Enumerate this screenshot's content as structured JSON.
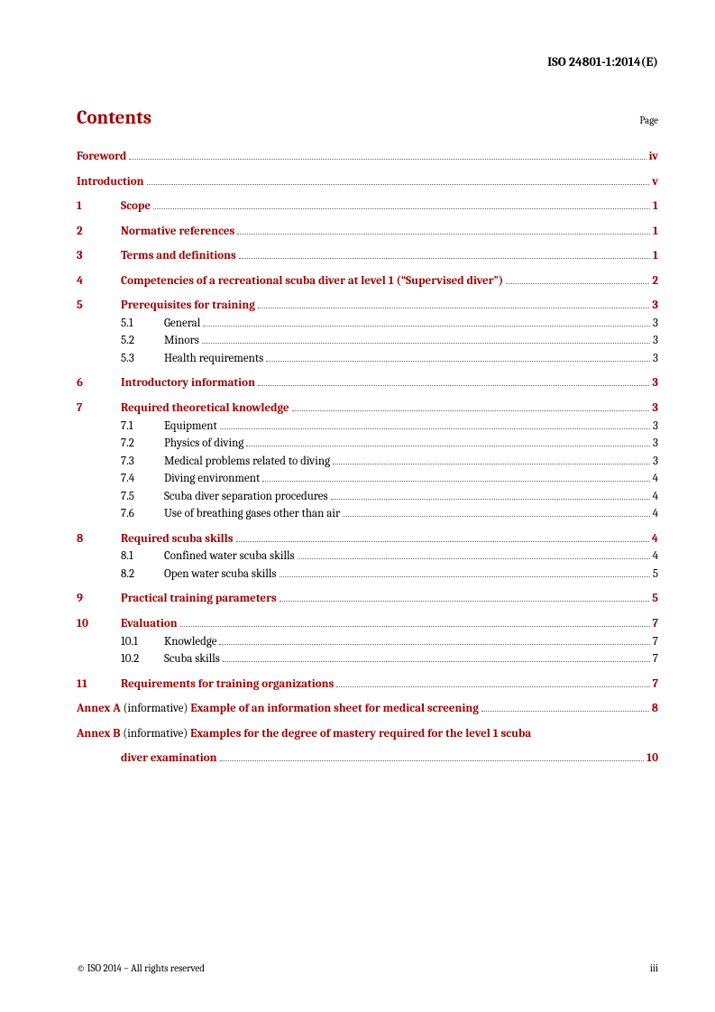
{
  "header": "ISO 24801-1:2014(E)",
  "title": "Contents",
  "page_label": "Page",
  "front": [
    {
      "label": "Foreword",
      "page": "iv"
    },
    {
      "label": "Introduction",
      "page": "v"
    }
  ],
  "sections": [
    {
      "num": "1",
      "label": "Scope",
      "page": "1"
    },
    {
      "num": "2",
      "label": "Normative references",
      "page": "1"
    },
    {
      "num": "3",
      "label": "Terms and definitions",
      "page": "1"
    },
    {
      "num": "4",
      "label": "Competencies of a recreational scuba diver at level 1 (“Supervised diver”)",
      "page": "2"
    },
    {
      "num": "5",
      "label": "Prerequisites for training",
      "page": "3",
      "subs": [
        {
          "num": "5.1",
          "label": "General",
          "page": "3"
        },
        {
          "num": "5.2",
          "label": "Minors",
          "page": "3"
        },
        {
          "num": "5.3",
          "label": "Health requirements",
          "page": "3"
        }
      ]
    },
    {
      "num": "6",
      "label": "Introductory information",
      "page": "3"
    },
    {
      "num": "7",
      "label": "Required theoretical knowledge",
      "page": "3",
      "subs": [
        {
          "num": "7.1",
          "label": "Equipment",
          "page": "3"
        },
        {
          "num": "7.2",
          "label": "Physics of diving",
          "page": "3"
        },
        {
          "num": "7.3",
          "label": "Medical problems related to diving",
          "page": "3"
        },
        {
          "num": "7.4",
          "label": "Diving environment",
          "page": "4"
        },
        {
          "num": "7.5",
          "label": "Scuba diver separation procedures",
          "page": "4"
        },
        {
          "num": "7.6",
          "label": "Use of breathing gases other than air",
          "page": "4"
        }
      ]
    },
    {
      "num": "8",
      "label": "Required scuba skills",
      "page": "4",
      "subs": [
        {
          "num": "8.1",
          "label": "Confined water scuba skills",
          "page": "4"
        },
        {
          "num": "8.2",
          "label": "Open water scuba skills",
          "page": "5"
        }
      ]
    },
    {
      "num": "9",
      "label": "Practical training parameters",
      "page": "5"
    },
    {
      "num": "10",
      "label": "Evaluation",
      "page": "7",
      "subs": [
        {
          "num": "10.1",
          "label": "Knowledge",
          "page": "7"
        },
        {
          "num": "10.2",
          "label": "Scuba skills",
          "page": "7"
        }
      ]
    },
    {
      "num": "11",
      "label": "Requirements for training organizations",
      "page": "7"
    }
  ],
  "annexes": [
    {
      "prefix": "Annex A",
      "note": "(informative)",
      "label": "Example of an information sheet for medical screening",
      "page": "8",
      "cont": null
    },
    {
      "prefix": "Annex B",
      "note": "(informative)",
      "label": "Examples for the degree of mastery required for the level 1 scuba",
      "cont": "diver examination",
      "page": "10"
    }
  ],
  "footer": {
    "left": "© ISO 2014 – All rights reserved",
    "right": "iii"
  },
  "colors": {
    "accent": "#a00000",
    "text": "#000000",
    "bg": "#ffffff"
  }
}
